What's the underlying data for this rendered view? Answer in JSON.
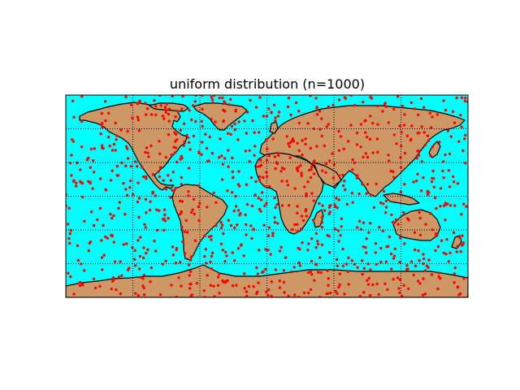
{
  "title": "uniform distribution (n=1000)",
  "colors": {
    "ocean": "#00ffff",
    "land": "#cd9766",
    "coastline": "#000000",
    "points": "#ff0000",
    "grid": "#000000"
  },
  "map": {
    "projection": "equirectangular",
    "lon_range": [
      -180,
      180
    ],
    "lat_range": [
      -90,
      90
    ],
    "meridians_deg": [
      -120,
      -60,
      0,
      60,
      120
    ],
    "parallels_deg": [
      -60,
      -30,
      0,
      30,
      60
    ],
    "grid_style": "dotted"
  },
  "chart_data": {
    "type": "scatter",
    "title": "uniform distribution (n=1000)",
    "n": 1000,
    "distribution": "uniform",
    "point_color": "red",
    "xlim": [
      -180,
      180
    ],
    "ylim": [
      -90,
      90
    ]
  }
}
